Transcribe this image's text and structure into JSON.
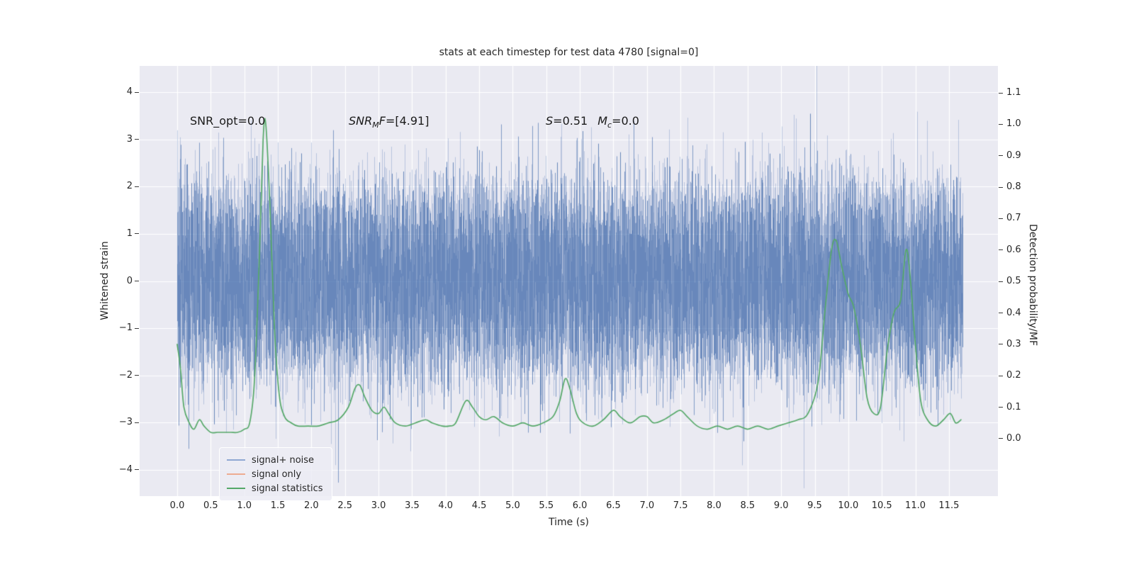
{
  "figure": {
    "title": "stats at each timestep for test data 4780 [signal=0]",
    "xlabel": "Time (s)",
    "ylabel_left": "Whitened strain",
    "ylabel_right": "Detection probability/MF"
  },
  "annotations": {
    "snr_opt": "SNR_opt=0.0",
    "snr_mf": {
      "base": "SNR",
      "sub": "M",
      "mid": "F",
      "rest": "=[4.91]"
    },
    "stats": {
      "s": "S",
      "eq": "=0.51",
      "m": "M",
      "sub": "c",
      "rest": "=0.0"
    }
  },
  "chart_data": {
    "type": "line",
    "title": "stats at each timestep for test data 4780 [signal=0]",
    "xlabel": "Time (s)",
    "ylabel_left": "Whitened strain",
    "ylabel_right": "Detection probability/MF",
    "xlim": [
      -0.56,
      12.23
    ],
    "ylim_left": [
      -4.56,
      4.56
    ],
    "ylim_right": [
      -0.183,
      1.186
    ],
    "x_ticks": [
      0.0,
      0.5,
      1.0,
      1.5,
      2.0,
      2.5,
      3.0,
      3.5,
      4.0,
      4.5,
      5.0,
      5.5,
      6.0,
      6.5,
      7.0,
      7.5,
      8.0,
      8.5,
      9.0,
      9.5,
      10.0,
      10.5,
      11.0,
      11.5
    ],
    "y_ticks_left": [
      -4,
      -3,
      -2,
      -1,
      0,
      1,
      2,
      3,
      4
    ],
    "y_ticks_right": [
      0.0,
      0.1,
      0.2,
      0.3,
      0.4,
      0.5,
      0.6,
      0.7,
      0.8,
      0.9,
      1.0,
      1.1
    ],
    "grid": true,
    "legend_position": "lower left",
    "series": [
      {
        "name": "signal+ noise",
        "axis": "left",
        "kind": "noise_band",
        "color": "#4C72B0",
        "display_color": "#8fa8d3",
        "band": {
          "distribution": "gaussian",
          "mean": 0,
          "std_estimate": 1.0,
          "t_range": [
            0,
            11.7
          ],
          "spike_max": 4.1,
          "render_seed": 4780
        }
      },
      {
        "name": "signal only",
        "axis": "left",
        "kind": "line",
        "color": "#DD8452",
        "display_color": "#edab91",
        "points": []
      },
      {
        "name": "signal statistics",
        "axis": "right",
        "kind": "line",
        "color": "#55A868",
        "display_color": "#55a868",
        "points": [
          [
            0,
            0.3
          ],
          [
            0.05,
            0.22
          ],
          [
            0.1,
            0.1
          ],
          [
            0.18,
            0.05
          ],
          [
            0.25,
            0.03
          ],
          [
            0.33,
            0.06
          ],
          [
            0.4,
            0.04
          ],
          [
            0.5,
            0.02
          ],
          [
            0.6,
            0.02
          ],
          [
            0.7,
            0.02
          ],
          [
            0.8,
            0.02
          ],
          [
            0.9,
            0.02
          ],
          [
            1,
            0.03
          ],
          [
            1.08,
            0.05
          ],
          [
            1.15,
            0.18
          ],
          [
            1.22,
            0.55
          ],
          [
            1.28,
            0.95
          ],
          [
            1.32,
            1
          ],
          [
            1.38,
            0.75
          ],
          [
            1.45,
            0.35
          ],
          [
            1.52,
            0.14
          ],
          [
            1.6,
            0.07
          ],
          [
            1.7,
            0.05
          ],
          [
            1.8,
            0.04
          ],
          [
            1.95,
            0.04
          ],
          [
            2.1,
            0.04
          ],
          [
            2.25,
            0.05
          ],
          [
            2.4,
            0.06
          ],
          [
            2.55,
            0.1
          ],
          [
            2.65,
            0.16
          ],
          [
            2.72,
            0.17
          ],
          [
            2.8,
            0.13
          ],
          [
            2.9,
            0.09
          ],
          [
            3,
            0.08
          ],
          [
            3.08,
            0.1
          ],
          [
            3.15,
            0.08
          ],
          [
            3.25,
            0.05
          ],
          [
            3.4,
            0.04
          ],
          [
            3.55,
            0.05
          ],
          [
            3.7,
            0.06
          ],
          [
            3.8,
            0.05
          ],
          [
            3.95,
            0.04
          ],
          [
            4.05,
            0.04
          ],
          [
            4.15,
            0.05
          ],
          [
            4.3,
            0.12
          ],
          [
            4.4,
            0.1
          ],
          [
            4.5,
            0.07
          ],
          [
            4.6,
            0.06
          ],
          [
            4.72,
            0.07
          ],
          [
            4.85,
            0.05
          ],
          [
            5,
            0.04
          ],
          [
            5.15,
            0.05
          ],
          [
            5.3,
            0.04
          ],
          [
            5.45,
            0.05
          ],
          [
            5.6,
            0.07
          ],
          [
            5.7,
            0.12
          ],
          [
            5.78,
            0.19
          ],
          [
            5.85,
            0.16
          ],
          [
            5.95,
            0.08
          ],
          [
            6.05,
            0.05
          ],
          [
            6.2,
            0.04
          ],
          [
            6.35,
            0.06
          ],
          [
            6.5,
            0.09
          ],
          [
            6.6,
            0.07
          ],
          [
            6.75,
            0.05
          ],
          [
            6.9,
            0.07
          ],
          [
            7,
            0.07
          ],
          [
            7.1,
            0.05
          ],
          [
            7.25,
            0.06
          ],
          [
            7.4,
            0.08
          ],
          [
            7.5,
            0.09
          ],
          [
            7.6,
            0.07
          ],
          [
            7.75,
            0.04
          ],
          [
            7.9,
            0.03
          ],
          [
            8.05,
            0.04
          ],
          [
            8.2,
            0.03
          ],
          [
            8.35,
            0.04
          ],
          [
            8.5,
            0.03
          ],
          [
            8.65,
            0.04
          ],
          [
            8.8,
            0.03
          ],
          [
            8.95,
            0.04
          ],
          [
            9.1,
            0.05
          ],
          [
            9.25,
            0.06
          ],
          [
            9.4,
            0.08
          ],
          [
            9.55,
            0.18
          ],
          [
            9.65,
            0.4
          ],
          [
            9.75,
            0.6
          ],
          [
            9.82,
            0.63
          ],
          [
            9.9,
            0.55
          ],
          [
            10,
            0.46
          ],
          [
            10.08,
            0.42
          ],
          [
            10.18,
            0.3
          ],
          [
            10.28,
            0.13
          ],
          [
            10.38,
            0.08
          ],
          [
            10.48,
            0.1
          ],
          [
            10.58,
            0.28
          ],
          [
            10.68,
            0.4
          ],
          [
            10.78,
            0.44
          ],
          [
            10.86,
            0.6
          ],
          [
            10.92,
            0.52
          ],
          [
            11,
            0.3
          ],
          [
            11.08,
            0.12
          ],
          [
            11.18,
            0.06
          ],
          [
            11.3,
            0.04
          ],
          [
            11.42,
            0.06
          ],
          [
            11.52,
            0.08
          ],
          [
            11.6,
            0.05
          ],
          [
            11.68,
            0.06
          ]
        ]
      }
    ]
  }
}
